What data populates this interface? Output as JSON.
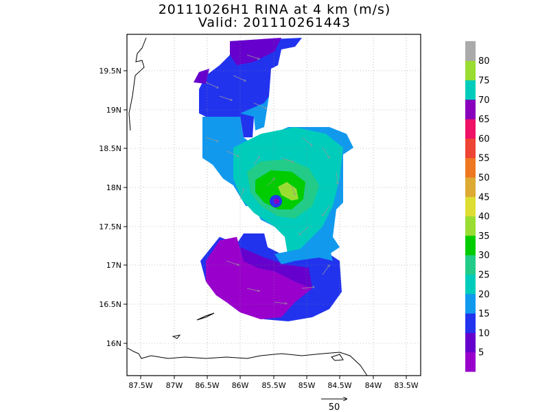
{
  "title": {
    "line1": "20111026H1  RINA at 4 km (m/s)",
    "line2": "Valid: 201110261443"
  },
  "map": {
    "lon_range": [
      -87.75,
      -83.25
    ],
    "lat_range": [
      15.6,
      19.95
    ],
    "x_ticks": [
      "87.5W",
      "87W",
      "86.5W",
      "86W",
      "85.5W",
      "85W",
      "84.5W",
      "84W",
      "83.5W"
    ],
    "y_ticks": [
      "19.5N",
      "19N",
      "18.5N",
      "18N",
      "17.5N",
      "17N",
      "16.5N",
      "16N"
    ],
    "grid": "dotted",
    "storm_center": {
      "lon": -85.45,
      "lat": 17.83
    }
  },
  "colorbar": {
    "labels": [
      "5",
      "10",
      "15",
      "20",
      "25",
      "30",
      "35",
      "40",
      "45",
      "50",
      "55",
      "60",
      "65",
      "70",
      "75",
      "80"
    ],
    "colors": [
      "#9900cc",
      "#6600cc",
      "#2233ee",
      "#1199ee",
      "#00ccbb",
      "#22cc88",
      "#00cc00",
      "#99dd33",
      "#dddd33",
      "#ddaa33",
      "#ee7722",
      "#ee4433",
      "#ee1166",
      "#8800bb",
      "#00ccbb",
      "#99dd33",
      "#aaaaaa"
    ]
  },
  "reference_vector": {
    "label": "50"
  }
}
